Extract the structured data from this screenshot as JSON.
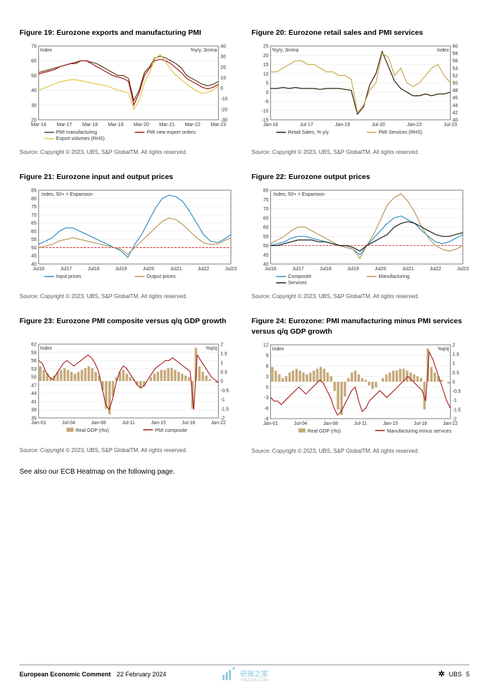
{
  "figures": {
    "f19": {
      "title": "Figure 19: Eurozone exports and manufacturing PMI",
      "source": "Source: Copyright © 2023, UBS, S&P GlobalTM. All rights reserved.",
      "left_label": "Index",
      "right_label": "%y/y, 3mma",
      "xticks": [
        "Mar-16",
        "Mar-17",
        "Mar-18",
        "Mar-19",
        "Mar-20",
        "Mar-21",
        "Mar-22",
        "Mar-23"
      ],
      "left_axis": {
        "min": 20,
        "max": 70,
        "step": 10
      },
      "right_axis": {
        "min": -30,
        "max": 40,
        "step": 10
      },
      "series": [
        {
          "name": "PMI manufacturing",
          "color": "#5a3a1a",
          "axis": "left",
          "y": [
            52,
            53,
            54,
            55,
            56,
            57,
            58,
            58,
            60,
            60,
            59,
            58,
            56,
            54,
            52,
            50,
            50,
            48,
            33,
            40,
            52,
            56,
            62,
            63,
            62,
            60,
            58,
            55,
            50,
            48,
            46,
            44,
            43,
            44,
            46
          ]
        },
        {
          "name": "PMI new export orders",
          "color": "#a01818",
          "axis": "left",
          "y": [
            51,
            52,
            53,
            54,
            56,
            57,
            58,
            59,
            60,
            60,
            58,
            56,
            54,
            52,
            50,
            49,
            48,
            46,
            30,
            38,
            50,
            55,
            60,
            61,
            60,
            58,
            55,
            52,
            48,
            46,
            44,
            42,
            41,
            42,
            44
          ]
        },
        {
          "name": "Export volumes (RHS)",
          "color": "#e2c848",
          "axis": "right",
          "y": [
            -2,
            0,
            2,
            4,
            6,
            7,
            8,
            8,
            7,
            6,
            5,
            4,
            3,
            2,
            0,
            -2,
            -3,
            -5,
            -20,
            -12,
            5,
            15,
            28,
            32,
            25,
            18,
            12,
            8,
            4,
            0,
            -3,
            -5,
            -4,
            -2,
            2
          ]
        }
      ],
      "legend": [
        "PMI manufacturing",
        "PMI new export orders",
        "Export volumes (RHS)"
      ]
    },
    "f20": {
      "title": "Figure 20: Eurozone retail sales and PMI services",
      "source": "Source: Copyright © 2023, UBS, S&P GlobalTM. All rights reserved.",
      "left_label": "%y/y, 3mma",
      "right_label": "Index",
      "xticks": [
        "Jan-16",
        "Jul-17",
        "Jan-19",
        "Jul-20",
        "Jan-22",
        "Jul-23"
      ],
      "left_axis": {
        "min": -15,
        "max": 25,
        "step": 5
      },
      "right_axis": {
        "min": 40,
        "max": 60,
        "step": 2
      },
      "series": [
        {
          "name": "Retail Sales, % y/y",
          "color": "#2b1a0a",
          "axis": "left",
          "y": [
            2,
            2,
            2.5,
            2,
            2.5,
            2,
            2,
            2,
            1.5,
            2,
            2,
            2,
            1.5,
            1,
            -12,
            -8,
            4,
            10,
            22,
            14,
            6,
            2,
            0,
            -2,
            -2,
            -1,
            -2,
            -1,
            -1,
            0
          ]
        },
        {
          "name": "PMI Services (RHS)",
          "color": "#c9a84a",
          "axis": "right",
          "y": [
            53,
            53,
            54,
            55,
            56,
            56,
            55,
            55,
            54,
            53,
            53,
            52,
            52,
            51,
            42,
            44,
            48,
            50,
            58,
            57,
            52,
            54,
            50,
            49,
            50,
            52,
            54,
            55,
            52,
            50
          ]
        }
      ],
      "legend": [
        "Retail Sales, % y/y",
        "PMI Services (RHS)"
      ]
    },
    "f21": {
      "title": "Figure 21: Eurozone input and output prices",
      "source": "Source: Copyright © 2023, UBS, S&P GlobalTM. All rights reserved.",
      "subtitle": "Index, 50+ = Expansion",
      "xticks": [
        "Jul16",
        "Jul17",
        "Jul18",
        "Jul19",
        "Jul20",
        "Jul21",
        "Jul22",
        "Jul23"
      ],
      "left_axis": {
        "min": 40,
        "max": 85,
        "step": 5
      },
      "refline": 50,
      "series": [
        {
          "name": "Input prices",
          "color": "#2b8ec4",
          "y": [
            52,
            54,
            56,
            60,
            62,
            62,
            60,
            58,
            56,
            54,
            52,
            50,
            48,
            44,
            52,
            58,
            66,
            74,
            80,
            82,
            81,
            78,
            72,
            65,
            58,
            54,
            53,
            55,
            58
          ]
        },
        {
          "name": "Output prices",
          "color": "#b89658",
          "y": [
            50,
            51,
            52,
            54,
            55,
            56,
            55,
            54,
            53,
            52,
            51,
            50,
            49,
            46,
            50,
            54,
            58,
            62,
            66,
            68,
            67,
            64,
            60,
            56,
            53,
            52,
            52,
            54,
            56
          ]
        }
      ],
      "legend": [
        "Input prices",
        "Output prices"
      ]
    },
    "f22": {
      "title": "Figure 22: Eurozone output prices",
      "source": "Source: Copyright © 2023, UBS, S&P GlobalTM. All rights reserved.",
      "subtitle": "Index, 50+ = Expansion",
      "xticks": [
        "Jul16",
        "Jul17",
        "Jul18",
        "Jul19",
        "Jul20",
        "Jul21",
        "Jul22",
        "Jul23"
      ],
      "left_axis": {
        "min": 40,
        "max": 80,
        "step": 5
      },
      "refline": 50,
      "series": [
        {
          "name": "Composite",
          "color": "#2b8ec4",
          "y": [
            50,
            51,
            52,
            54,
            55,
            55,
            54,
            53,
            52,
            51,
            50,
            49,
            48,
            45,
            50,
            54,
            58,
            62,
            65,
            66,
            64,
            62,
            58,
            55,
            52,
            51,
            52,
            54,
            56
          ]
        },
        {
          "name": "Manufacturing",
          "color": "#b89658",
          "y": [
            51,
            53,
            55,
            58,
            60,
            60,
            58,
            56,
            54,
            52,
            50,
            49,
            48,
            43,
            50,
            56,
            64,
            72,
            76,
            78,
            74,
            68,
            60,
            54,
            50,
            48,
            47,
            48,
            50
          ]
        },
        {
          "name": "Services",
          "color": "#1a1a1a",
          "y": [
            50,
            50,
            51,
            52,
            53,
            53,
            53,
            52,
            52,
            51,
            50,
            50,
            49,
            47,
            50,
            52,
            54,
            56,
            60,
            62,
            63,
            62,
            60,
            58,
            56,
            55,
            55,
            56,
            57
          ]
        }
      ],
      "legend": [
        "Composite",
        "Manufacturing",
        "Services"
      ]
    },
    "f23": {
      "title": "Figure 23: Eurozone PMI composite versus q/q GDP growth",
      "source": "Source: Copyright © 2023, UBS, S&P GlobalTM. All rights reserved.",
      "left_label": "Index",
      "right_label": "%q/q",
      "xticks": [
        "Jan-01",
        "Jul-04",
        "Jan-08",
        "Jul-11",
        "Jan-15",
        "Jul-18",
        "Jan-22"
      ],
      "left_axis": {
        "min": 35,
        "max": 62,
        "step": 3
      },
      "right_axis": {
        "min": -2,
        "max": 2,
        "step": 0.5
      },
      "bars": {
        "name": "Real GDP (rhs)",
        "color": "#c6aa7a",
        "axis": "right",
        "y": [
          0.8,
          0.6,
          0.4,
          0.2,
          0.3,
          0.5,
          0.6,
          0.7,
          0.6,
          0.5,
          0.4,
          0.5,
          0.6,
          0.7,
          0.8,
          0.7,
          0.5,
          0.3,
          -0.5,
          -1.5,
          -1.8,
          -0.8,
          0.2,
          0.5,
          0.6,
          0.4,
          0.2,
          0.1,
          -0.2,
          -0.4,
          -0.3,
          0.0,
          0.2,
          0.4,
          0.5,
          0.6,
          0.6,
          0.7,
          0.7,
          0.6,
          0.5,
          0.4,
          0.3,
          0.2,
          -1.5,
          1.8,
          0.8,
          0.5,
          0.3,
          0.1,
          0.0,
          -0.1
        ]
      },
      "line": {
        "name": "PMI composite",
        "color": "#a01818",
        "axis": "left",
        "y": [
          56,
          55,
          52,
          50,
          49,
          51,
          53,
          55,
          56,
          55,
          54,
          55,
          56,
          57,
          58,
          57,
          55,
          52,
          46,
          40,
          38,
          42,
          48,
          52,
          54,
          53,
          51,
          49,
          47,
          46,
          47,
          49,
          51,
          53,
          54,
          55,
          56,
          56,
          57,
          56,
          55,
          54,
          53,
          52,
          38,
          58,
          56,
          54,
          52,
          50,
          49,
          48
        ]
      },
      "legend": [
        "Real GDP (rhs)",
        "PMI composite"
      ]
    },
    "f24": {
      "title": "Figure 24: Eurozone: PMI manufacturing minus PMI services versus q/q GDP growth",
      "source": "Source: Copyright © 2023, UBS, S&P GlobalTM. All rights reserved.",
      "left_label": "Index",
      "right_label": "%q/q",
      "xticks": [
        "Jan-01",
        "Jul-04",
        "Jan-08",
        "Jul-11",
        "Jan-15",
        "Jul-18",
        "Jan-22"
      ],
      "left_axis": {
        "min": -9,
        "max": 12,
        "step": 3
      },
      "right_axis": {
        "min": -2,
        "max": 2,
        "step": 0.5
      },
      "bars": {
        "name": "Real GDP (rhs)",
        "color": "#c6aa7a",
        "axis": "right",
        "y": [
          0.8,
          0.6,
          0.4,
          0.2,
          0.3,
          0.5,
          0.6,
          0.7,
          0.6,
          0.5,
          0.4,
          0.5,
          0.6,
          0.7,
          0.8,
          0.7,
          0.5,
          0.3,
          -0.5,
          -1.5,
          -1.8,
          -0.8,
          0.2,
          0.5,
          0.6,
          0.4,
          0.2,
          0.1,
          -0.2,
          -0.4,
          -0.3,
          0.0,
          0.2,
          0.4,
          0.5,
          0.6,
          0.6,
          0.7,
          0.7,
          0.6,
          0.5,
          0.4,
          0.3,
          0.2,
          -1.5,
          1.8,
          0.8,
          0.5,
          0.3,
          0.1,
          0.0,
          -0.1
        ]
      },
      "line": {
        "name": "Manufacturing minus services",
        "color": "#a01818",
        "axis": "left",
        "y": [
          -3,
          -4,
          -4,
          -5,
          -4,
          -3,
          -2,
          -1,
          0,
          -1,
          -2,
          -1,
          0,
          1,
          2,
          1,
          -1,
          -3,
          -6,
          -8,
          -7,
          -5,
          -3,
          -1,
          0,
          -4,
          -7,
          -6,
          -4,
          -3,
          -2,
          -1,
          -2,
          -3,
          -2,
          -1,
          0,
          1,
          2,
          3,
          2,
          1,
          0,
          -1,
          -4,
          10,
          8,
          5,
          2,
          -1,
          -4,
          -6
        ]
      },
      "legend": [
        "Real GDP (rhs)",
        "Manufacturing minus services"
      ]
    }
  },
  "note": "See also our ECB Heatmap on the following page.",
  "footer": {
    "title": "European Economic Comment",
    "date": "22 February 2024",
    "brand": "UBS",
    "page": "5"
  },
  "watermark": {
    "brand": "研报之家",
    "url": "YBLOOK.COM"
  }
}
